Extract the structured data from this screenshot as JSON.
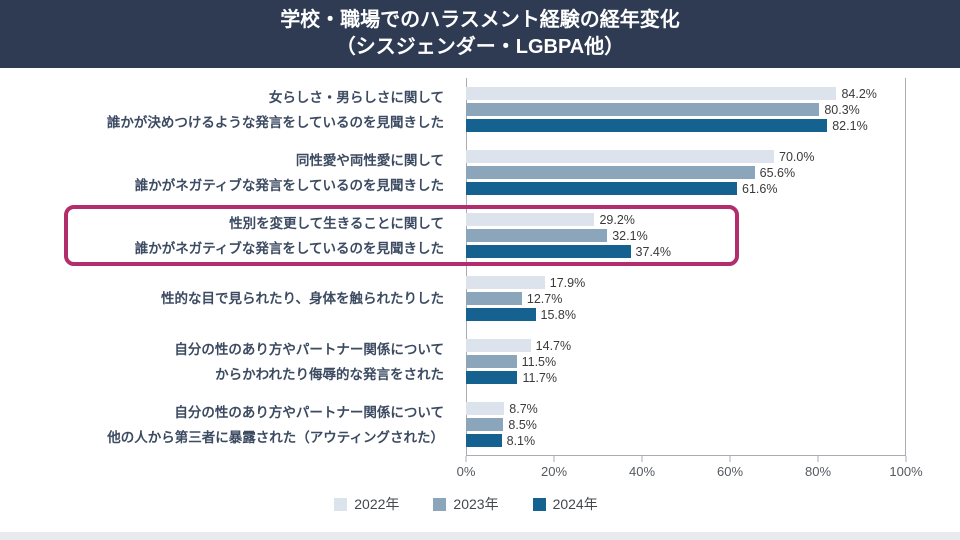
{
  "header": {
    "title_line1": "学校・職場でのハラスメント経験の経年変化",
    "title_line2": "（シスジェンダー・LGBPA他）"
  },
  "colors": {
    "header_bg": "#2e3b53",
    "highlight_box": "#b12d6b",
    "series_2022": "#dce3ec",
    "series_2023": "#8ba6bb",
    "series_2024": "#156190"
  },
  "chart_data": {
    "type": "bar",
    "orientation": "horizontal",
    "title": "学校・職場でのハラスメント経験の経年変化（シスジェンダー・LGBPA他）",
    "xlabel": "",
    "ylabel": "",
    "xlim": [
      0,
      100
    ],
    "grid": false,
    "legend_position": "bottom",
    "value_suffix": "%",
    "x_ticks": [
      "0%",
      "20%",
      "40%",
      "60%",
      "80%",
      "100%"
    ],
    "categories": [
      {
        "line1": "女らしさ・男らしさに関して",
        "line2": "誰かが決めつけるような発言をしているのを見聞きした",
        "highlighted": false
      },
      {
        "line1": "同性愛や両性愛に関して",
        "line2": "誰かがネガティブな発言をしているのを見聞きした",
        "highlighted": false
      },
      {
        "line1": "性別を変更して生きることに関して",
        "line2": "誰かがネガティブな発言をしているのを見聞きした",
        "highlighted": true
      },
      {
        "line1": "性的な目で見られたり、身体を触られたりした",
        "line2": "",
        "highlighted": false
      },
      {
        "line1": "自分の性のあり方やパートナー関係について",
        "line2": "からかわれたり侮辱的な発言をされた",
        "highlighted": false
      },
      {
        "line1": "自分の性のあり方やパートナー関係について",
        "line2": "他の人から第三者に暴露された（アウティングされた）",
        "highlighted": false
      }
    ],
    "series": [
      {
        "name": "2022年",
        "color": "#dce3ec",
        "values": [
          84.2,
          70.0,
          29.2,
          17.9,
          14.7,
          8.7
        ]
      },
      {
        "name": "2023年",
        "color": "#8ba6bb",
        "values": [
          80.3,
          65.6,
          32.1,
          12.7,
          11.5,
          8.5
        ]
      },
      {
        "name": "2024年",
        "color": "#156190",
        "values": [
          82.1,
          61.6,
          37.4,
          15.8,
          11.7,
          8.1
        ]
      }
    ],
    "legend": [
      "2022年",
      "2023年",
      "2024年"
    ]
  }
}
